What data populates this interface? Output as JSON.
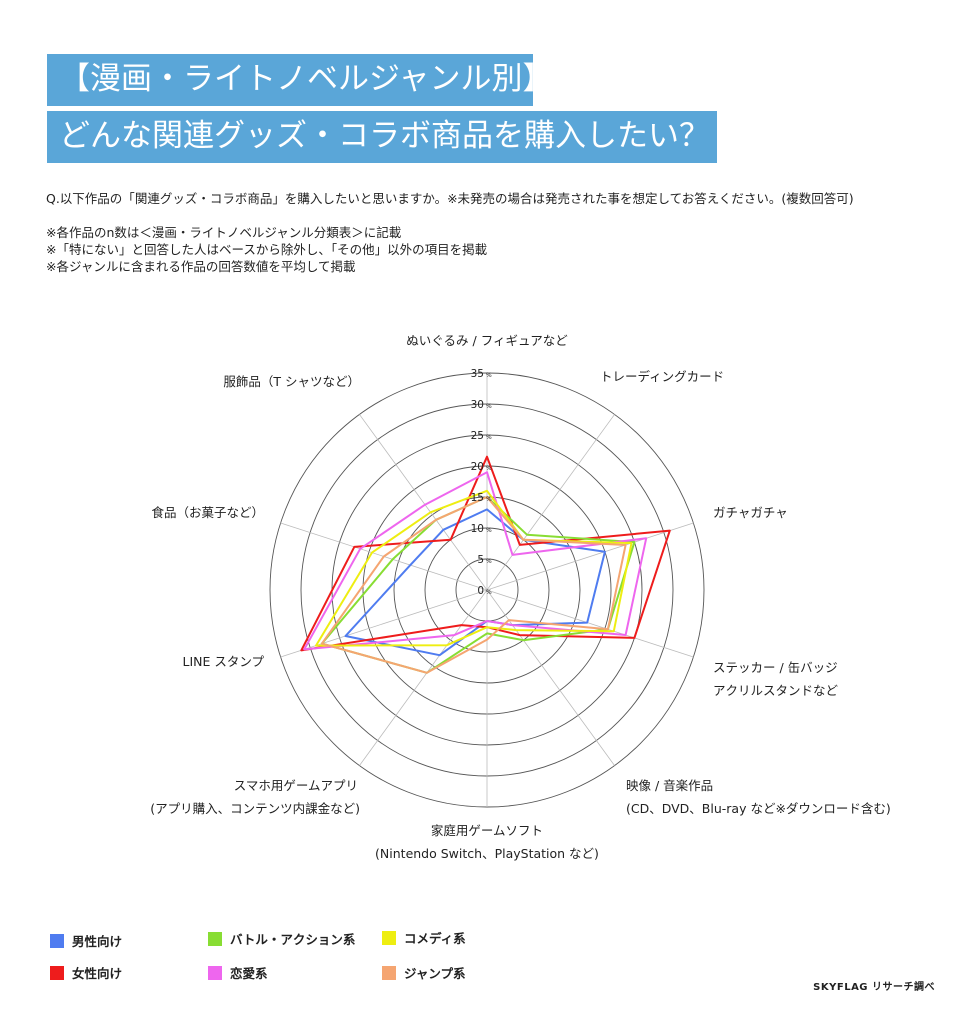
{
  "title_line1": "【漫画・ライトノベルジャンル別】",
  "title_line2": "どんな関連グッズ・コラボ商品を購入したい？",
  "question": "Q.以下作品の「関連グッズ・コラボ商品」を購入したいと思いますか。※未発売の場合は発売された事を想定してお答えください。(複数回答可)",
  "notes": [
    "※各作品のn数は＜漫画・ライトノベルジャンル分類表＞に記載",
    "※「特にない」と回答した人はベースから除外し、「その他」以外の項目を掲載",
    "※各ジャンルに含まれる作品の回答数値を平均して掲載"
  ],
  "credit": "SKYFLAG リサーチ調べ",
  "chart_data": {
    "type": "radar",
    "unit": "%",
    "rmax": 35,
    "ticks": [
      "0",
      "5",
      "10",
      "15",
      "20",
      "25",
      "30",
      "35"
    ],
    "axes": [
      {
        "lines": [
          "ぬいぐるみ / フィギュアなど"
        ]
      },
      {
        "lines": [
          "トレーディングカード"
        ]
      },
      {
        "lines": [
          "ガチャガチャ"
        ]
      },
      {
        "lines": [
          "ステッカー / 缶バッジ",
          "アクリルスタンドなど"
        ]
      },
      {
        "lines": [
          "映像 / 音楽作品",
          "(CD、DVD、Blu-ray など※ダウンロード含む)"
        ]
      },
      {
        "lines": [
          "家庭用ゲームソフト",
          "(Nintendo Switch、PlayStation など)"
        ]
      },
      {
        "lines": [
          "スマホ用ゲームアプリ",
          "(アプリ購入、コンテンツ内課金など)"
        ]
      },
      {
        "lines": [
          "LINE スタンプ"
        ]
      },
      {
        "lines": [
          "食品（お菓子など）"
        ]
      },
      {
        "lines": [
          "服飾品（T シャツなど）"
        ]
      }
    ],
    "series": [
      {
        "name": "男性向け",
        "color": "#4f7cf0",
        "values": [
          13,
          10,
          20,
          17,
          7,
          5,
          13,
          24,
          13,
          12
        ]
      },
      {
        "name": "女性向け",
        "color": "#ee1c1c",
        "values": [
          21.5,
          9,
          31,
          25,
          9,
          6,
          7,
          31.5,
          22.5,
          10
        ]
      },
      {
        "name": "バトル・アクション系",
        "color": "#88dd33",
        "values": [
          15,
          11,
          25,
          20.5,
          10,
          7,
          16.5,
          28,
          16,
          14
        ]
      },
      {
        "name": "恋愛系",
        "color": "#ee66ee",
        "values": [
          19,
          7,
          27,
          23.5,
          7,
          5,
          9,
          31,
          21.5,
          17
        ]
      },
      {
        "name": "コメディ系",
        "color": "#eeee11",
        "values": [
          16,
          10,
          24.5,
          21.5,
          8,
          6,
          11,
          29,
          19.5,
          15.5
        ]
      },
      {
        "name": "ジャンプ系",
        "color": "#f5a571",
        "values": [
          15,
          10,
          23.5,
          20.5,
          6,
          8,
          16.5,
          28,
          17.5,
          14
        ]
      }
    ]
  },
  "colors": {
    "title_bg": "#5aa6d8",
    "grid": "#555555",
    "spoke": "#bbbbbb"
  }
}
